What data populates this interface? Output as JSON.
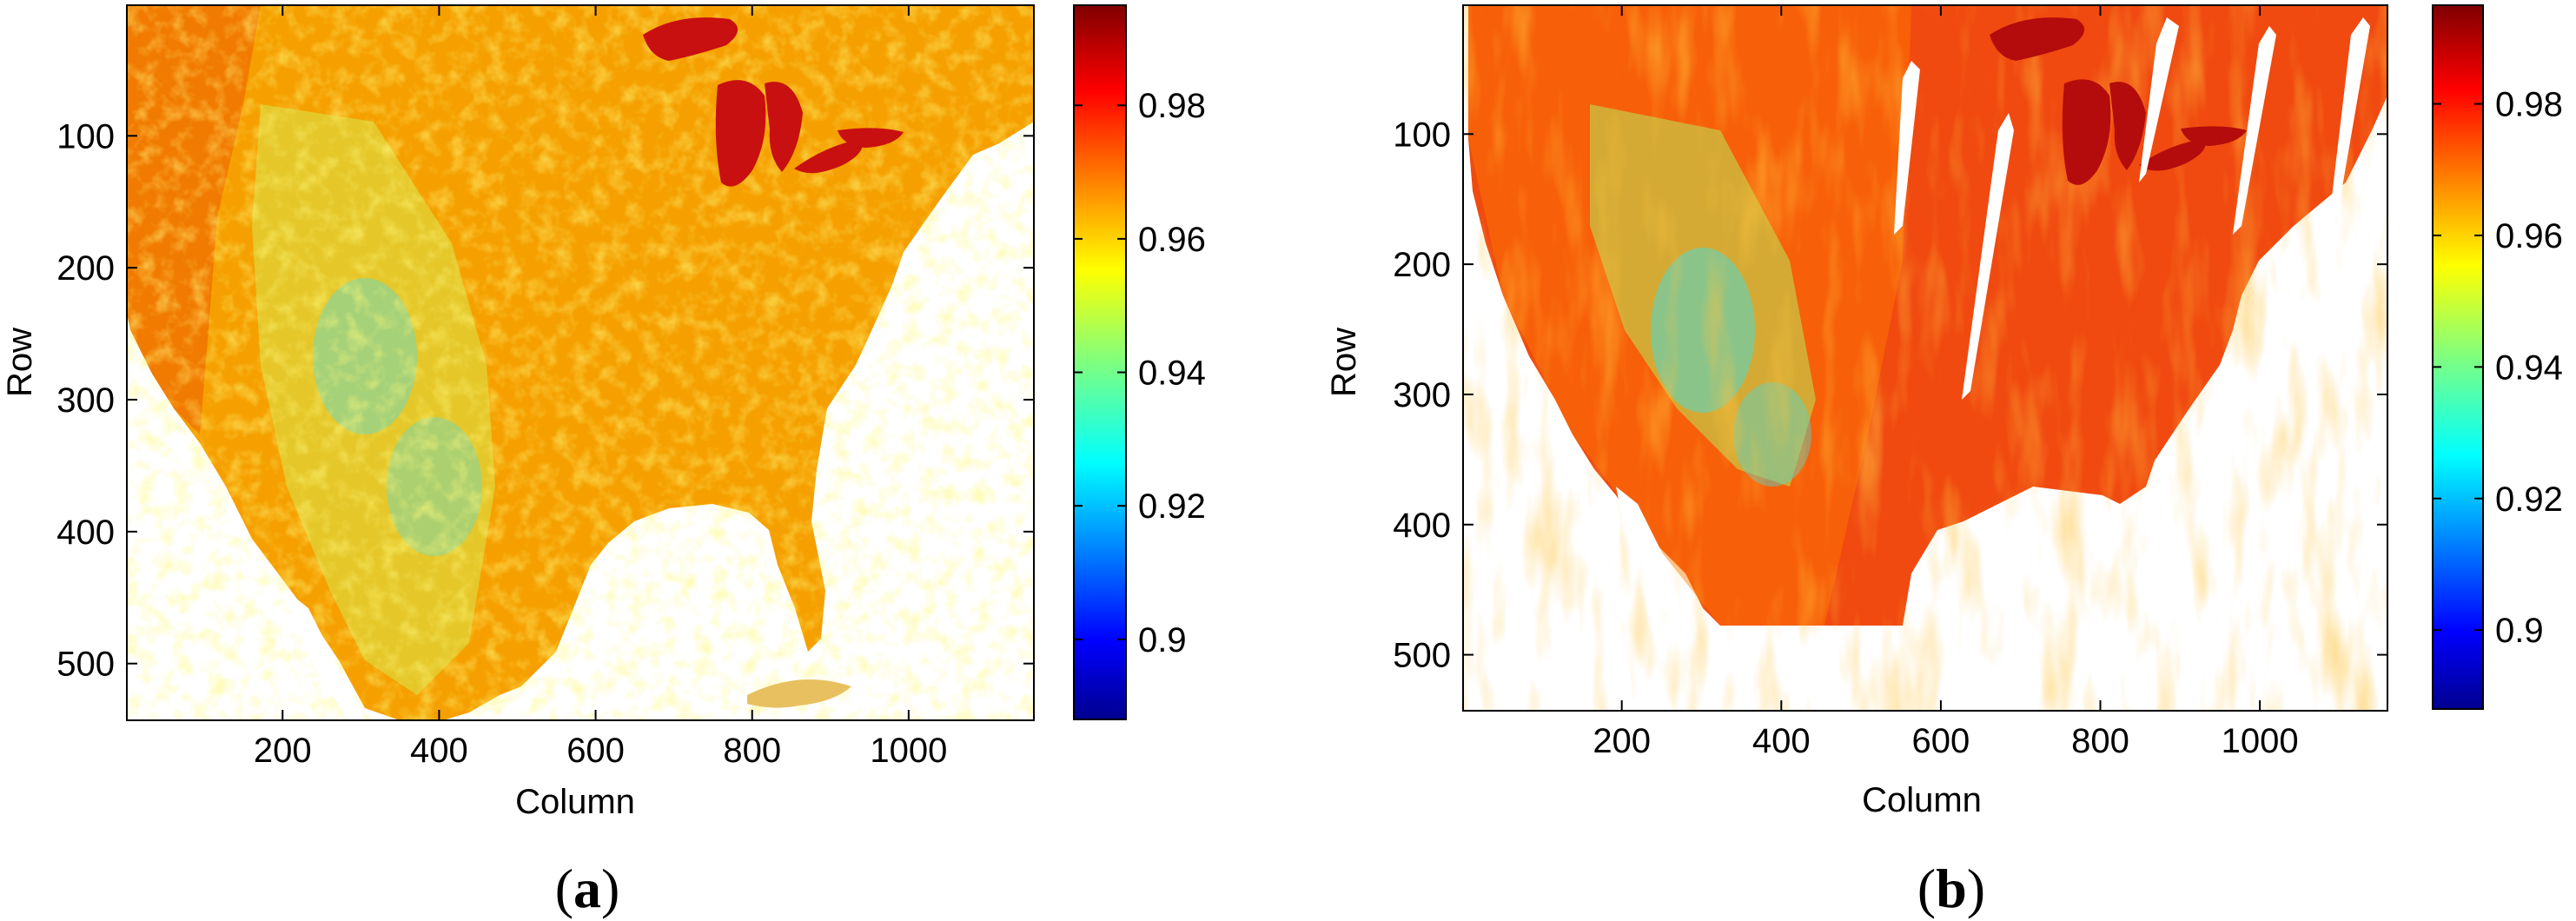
{
  "colors": {
    "colormap": "jet",
    "land_a_dominant": "#f5a000",
    "land_b_dominant": "#f04a10",
    "lakes": "#c81010",
    "background": "#ffffff"
  },
  "chart_data": [
    {
      "type": "heatmap",
      "panel": "a",
      "panel_label_bold": "a",
      "panel_label_open": "(",
      "panel_label_close": ")",
      "xlabel": "Column",
      "ylabel": "Row",
      "xlim": [
        1,
        1160
      ],
      "ylim": [
        543,
        1
      ],
      "y_reversed": true,
      "xticks": [
        200,
        400,
        600,
        800,
        1000
      ],
      "yticks": [
        100,
        200,
        300,
        400,
        500
      ],
      "clim": [
        0.888,
        0.995
      ],
      "colorbar_ticks": [
        0.9,
        0.92,
        0.94,
        0.96,
        0.98
      ],
      "colorbar_tick_labels": [
        "0.9",
        "0.92",
        "0.94",
        "0.96",
        "0.98"
      ],
      "grid": false
    },
    {
      "type": "heatmap",
      "panel": "b",
      "panel_label_bold": "b",
      "panel_label_open": "(",
      "panel_label_close": ")",
      "xlabel": "Column",
      "ylabel": "Row",
      "xlim": [
        1,
        1160
      ],
      "ylim": [
        543,
        1
      ],
      "y_reversed": true,
      "xticks": [
        200,
        400,
        600,
        800,
        1000
      ],
      "yticks": [
        100,
        200,
        300,
        400,
        500
      ],
      "clim": [
        0.888,
        0.995
      ],
      "colorbar_ticks": [
        0.9,
        0.92,
        0.94,
        0.96,
        0.98
      ],
      "colorbar_tick_labels": [
        "0.9",
        "0.92",
        "0.94",
        "0.96",
        "0.98"
      ],
      "grid": false
    }
  ]
}
